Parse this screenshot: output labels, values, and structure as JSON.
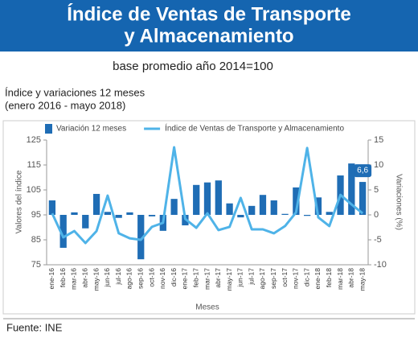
{
  "chart_data": {
    "type": "combo",
    "title": [
      "Índice de Ventas de Transporte",
      "y Almacenamiento"
    ],
    "subtitle": "base promedio año 2014=100",
    "chart_label": [
      "Índice y variaciones 12 meses",
      "(enero 2016 - mayo 2018)"
    ],
    "y_label": "Valores del índice",
    "y2_label": "Variaciones (%)",
    "x_label": "Meses",
    "source": "Fuente: INE",
    "categories": [
      "ene-16",
      "feb-16",
      "mar-16",
      "abr-16",
      "may-16",
      "jun-16",
      "jul-16",
      "ago-16",
      "sep-16",
      "oct-16",
      "nov-16",
      "dic-16",
      "ene-17",
      "feb-17",
      "mar-17",
      "abr-17",
      "may-17",
      "jun-17",
      "jul-17",
      "ago-17",
      "sep-17",
      "oct-17",
      "nov-17",
      "dic-17",
      "ene-18",
      "feb-18",
      "mar-18",
      "abr-18",
      "may-18"
    ],
    "series": [
      {
        "name": "Variación 12 meses",
        "type": "bar",
        "axis": "y2",
        "color": "#1f6db5",
        "values": [
          2.9,
          -6.6,
          0.5,
          -2.7,
          4.2,
          0.6,
          -0.6,
          0.5,
          -8.9,
          -0.3,
          -3.2,
          3.2,
          -2.1,
          6.0,
          6.5,
          6.9,
          2.3,
          -0.5,
          1.8,
          4.0,
          2.9,
          0.2,
          5.5,
          -0.2,
          3.5,
          0.6,
          7.9,
          10.3,
          6.6
        ],
        "value_labels": [
          null,
          null,
          null,
          null,
          null,
          null,
          null,
          null,
          null,
          null,
          null,
          null,
          null,
          null,
          null,
          null,
          null,
          null,
          null,
          null,
          null,
          null,
          null,
          null,
          null,
          null,
          null,
          null,
          "6,6"
        ]
      },
      {
        "name": "Índice de Ventas de Transporte y Almacenamiento",
        "type": "line",
        "color": "#4fb3e8",
        "values": [
          95.6,
          86,
          88.5,
          83.7,
          88.5,
          102.7,
          87.6,
          85.6,
          85,
          90.2,
          91.8,
          122.1,
          93.4,
          89.8,
          95.6,
          88.9,
          90.2,
          101.8,
          89.2,
          89.2,
          87.6,
          90.5,
          96,
          121.8,
          94,
          90.5,
          103,
          99.2,
          95.6
        ]
      }
    ],
    "ylim": [
      75,
      125
    ],
    "yticks": [
      75,
      85,
      95,
      105,
      115,
      125
    ],
    "y2lim": [
      -10,
      15
    ],
    "y2ticks": [
      -10,
      -5,
      0,
      5,
      10,
      15
    ]
  }
}
